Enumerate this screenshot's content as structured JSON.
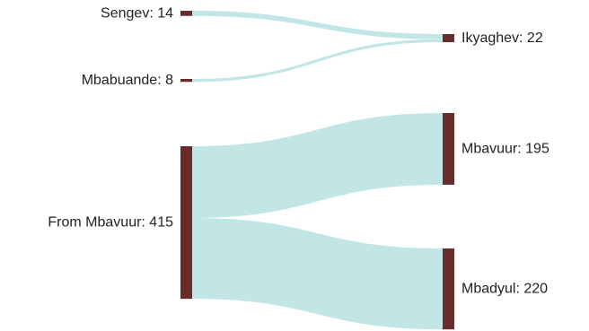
{
  "chart_data": {
    "type": "sankey",
    "colors": {
      "node": "#6b2b2b",
      "link": "#c2e6e6"
    },
    "nodes": [
      {
        "id": "sengev",
        "label": "Sengev: 14",
        "value": 14,
        "column": 0
      },
      {
        "id": "mbabuande",
        "label": "Mbabuande: 8",
        "value": 8,
        "column": 0
      },
      {
        "id": "from_mbavuur",
        "label": "From Mbavuur: 415",
        "value": 415,
        "column": 0
      },
      {
        "id": "ikyaghev",
        "label": "Ikyaghev: 22",
        "value": 22,
        "column": 1
      },
      {
        "id": "mbavuur",
        "label": "Mbavuur: 195",
        "value": 195,
        "column": 1
      },
      {
        "id": "mbadyul",
        "label": "Mbadyul: 220",
        "value": 220,
        "column": 1
      }
    ],
    "links": [
      {
        "source": "sengev",
        "target": "ikyaghev",
        "value": 14
      },
      {
        "source": "mbabuande",
        "target": "ikyaghev",
        "value": 8
      },
      {
        "source": "from_mbavuur",
        "target": "mbavuur",
        "value": 195
      },
      {
        "source": "from_mbavuur",
        "target": "mbadyul",
        "value": 220
      }
    ]
  }
}
